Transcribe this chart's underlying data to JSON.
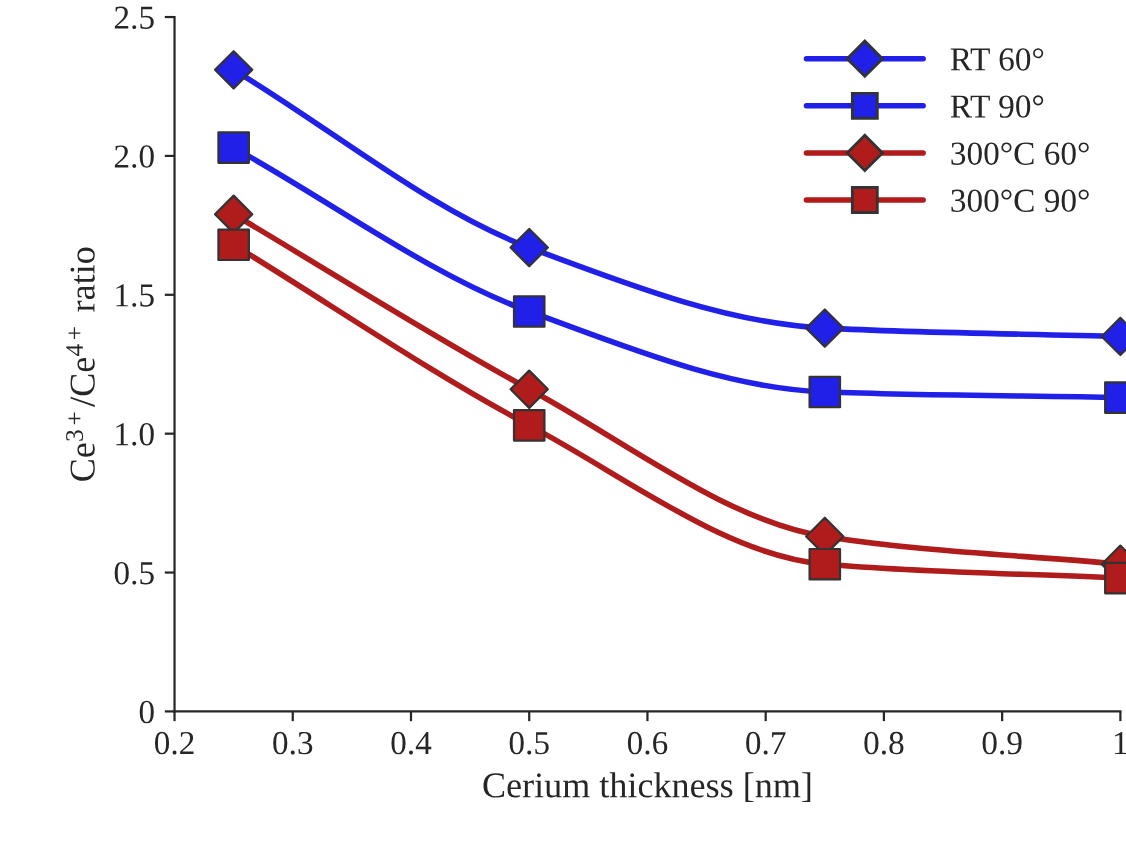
{
  "chart_data": {
    "type": "line",
    "xlabel": "Cerium thickness [nm]",
    "ylabel": "Ce$^{3+}$/Ce$^{4+}$ ratio",
    "x": [
      0.25,
      0.5,
      0.75,
      1.0
    ],
    "series": [
      {
        "name": "RT 60°",
        "color": "#2020e8",
        "marker": "diamond",
        "values": [
          2.31,
          1.67,
          1.38,
          1.35
        ]
      },
      {
        "name": "RT 90°",
        "color": "#2020e8",
        "marker": "square",
        "values": [
          2.03,
          1.44,
          1.15,
          1.13
        ]
      },
      {
        "name": "300°C 60°",
        "color": "#b01c1c",
        "marker": "diamond",
        "values": [
          1.79,
          1.16,
          0.63,
          0.53
        ]
      },
      {
        "name": "300°C 90°",
        "color": "#b01c1c",
        "marker": "square",
        "values": [
          1.68,
          1.03,
          0.53,
          0.48
        ]
      }
    ],
    "xlim": [
      0.2,
      1.0
    ],
    "xticks": [
      0.2,
      0.3,
      0.4,
      0.5,
      0.6,
      0.7,
      0.8,
      0.9,
      {
        "value": 1.0,
        "label": "1"
      }
    ],
    "ylim": [
      0,
      2.5
    ],
    "yticks": [
      0,
      0.5,
      {
        "value": 1.0,
        "label": "1.0"
      },
      1.5,
      {
        "value": 2.0,
        "label": "2.0"
      },
      2.5
    ],
    "grid": false,
    "legend": "top right",
    "line_style": "solid"
  }
}
